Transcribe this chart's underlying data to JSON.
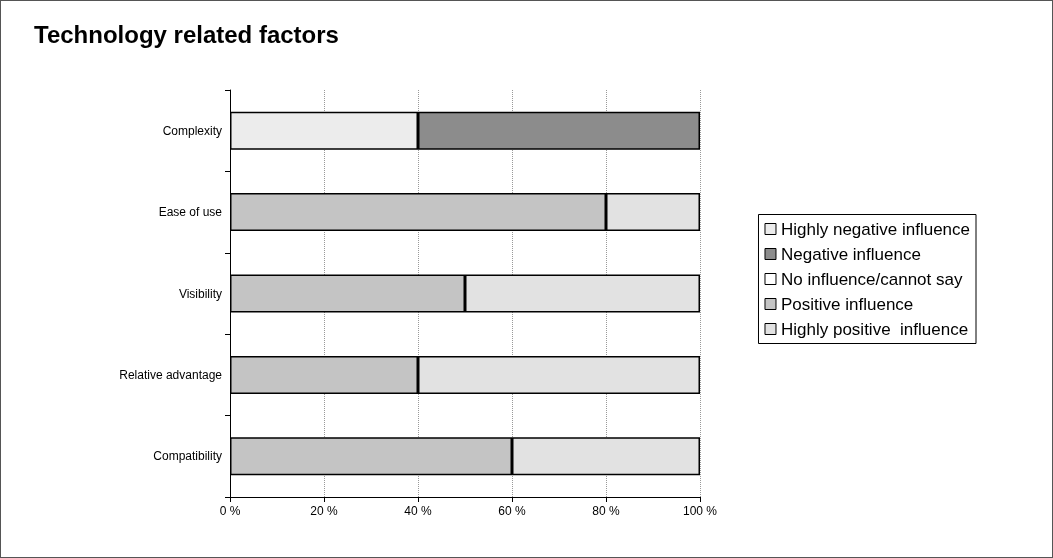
{
  "chart_data": {
    "type": "bar",
    "title": "Technology related factors",
    "orientation": "horizontal",
    "stacked": true,
    "categories": [
      "Complexity",
      "Ease of use",
      "Visibility",
      "Relative advantage",
      "Compatibility"
    ],
    "series": [
      {
        "name": "Highly negative influence",
        "color": "#ececec",
        "values": [
          40,
          null,
          null,
          null,
          null
        ]
      },
      {
        "name": "Negative influence",
        "color": "#8c8c8c",
        "values": [
          60,
          null,
          null,
          null,
          null
        ]
      },
      {
        "name": "No influence/cannot say",
        "color": "#ffffff",
        "values": [
          null,
          null,
          null,
          null,
          null
        ]
      },
      {
        "name": "Positive influence",
        "color": "#c4c4c4",
        "values": [
          null,
          80,
          50,
          40,
          60
        ]
      },
      {
        "name": "Highly positive  influence",
        "color": "#e2e2e2",
        "values": [
          null,
          20,
          50,
          60,
          40
        ]
      }
    ],
    "xlim": [
      0,
      100
    ],
    "xticks": [
      {
        "value": 0,
        "label": "0 %"
      },
      {
        "value": 20,
        "label": "20 %"
      },
      {
        "value": 40,
        "label": "40 %"
      },
      {
        "value": 60,
        "label": "60 %"
      },
      {
        "value": 80,
        "label": "80 %"
      },
      {
        "value": 100,
        "label": "100 %"
      }
    ],
    "grid": "x",
    "legend": "right"
  }
}
